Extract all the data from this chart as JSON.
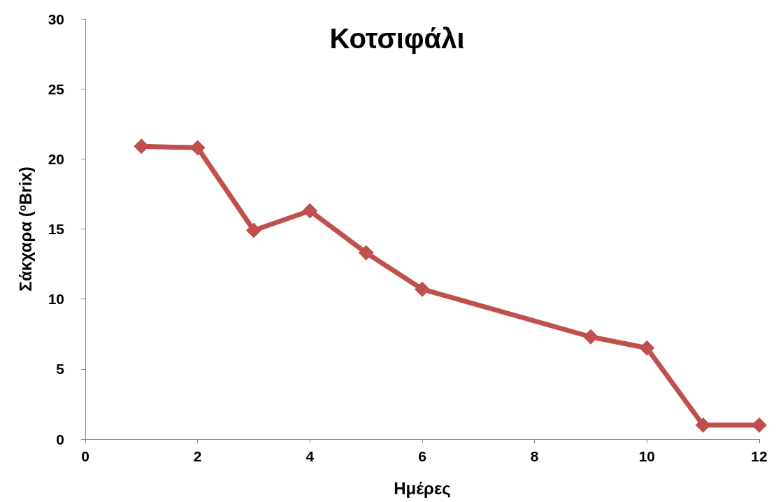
{
  "chart_data": {
    "type": "line",
    "title": "Κοτσιφάλι",
    "xlabel": "Ημέρες",
    "ylabel": "Σάκχαρα ($^{o}$Brix)",
    "x": [
      1,
      2,
      3,
      4,
      5,
      6,
      9,
      10,
      11,
      12
    ],
    "series": [
      {
        "color": "#c0504d",
        "values": [
          20.9,
          20.8,
          14.9,
          16.3,
          13.3,
          10.7,
          7.3,
          6.5,
          1.0,
          1.0
        ]
      }
    ],
    "xlim": [
      0,
      12
    ],
    "xticks": [
      0,
      2,
      4,
      6,
      8,
      10,
      12
    ],
    "ylim": [
      0,
      30
    ],
    "yticks": [
      0,
      5,
      10,
      15,
      20,
      25,
      30
    ],
    "grid": false,
    "marker": "diamond",
    "line_style": "solid"
  }
}
